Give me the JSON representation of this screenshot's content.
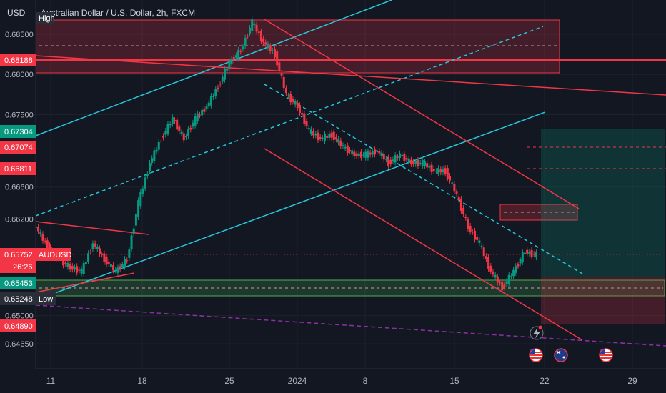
{
  "header": {
    "currency": "USD",
    "title": "Australian Dollar / U.S. Dollar, 2h, FXCM"
  },
  "chart_data": {
    "type": "candlestick",
    "title": "Australian Dollar / U.S. Dollar, 2h, FXCM",
    "symbol": "AUDUSD",
    "y_ticks": [
      0.685,
      0.68,
      0.675,
      0.666,
      0.662,
      0.65,
      0.6465
    ],
    "x_ticks": [
      "11",
      "18",
      "25",
      "2024",
      "8",
      "15",
      "22",
      "29"
    ],
    "ylim": [
      0.644,
      0.6885
    ],
    "grid": true,
    "price_tags": [
      {
        "value": "0.68188",
        "label": "",
        "color": "#f23645"
      },
      {
        "value": "0.67304",
        "label": "",
        "color": "#089981"
      },
      {
        "value": "0.67074",
        "label": "",
        "color": "#f23645"
      },
      {
        "value": "0.66811",
        "label": "",
        "color": "#f23645"
      },
      {
        "value": "0.65752",
        "label": "AUDUSD",
        "color": "#f23645"
      },
      {
        "value": "26:26",
        "label": "",
        "color": "#f23645"
      },
      {
        "value": "0.65453",
        "label": "",
        "color": "#089981"
      },
      {
        "value": "0.65248",
        "label": "Low",
        "color": "#2a2e39"
      },
      {
        "value": "0.64890",
        "label": "",
        "color": "#f23645"
      }
    ],
    "annotations": [
      "High",
      "Low"
    ],
    "series": [
      {
        "name": "AUDUSD",
        "points": [
          [
            0,
            0.661
          ],
          [
            1,
            0.6585
          ],
          [
            2,
            0.657
          ],
          [
            3,
            0.656
          ],
          [
            4,
            0.6555
          ],
          [
            5,
            0.659
          ],
          [
            6,
            0.657
          ],
          [
            7,
            0.6555
          ],
          [
            8,
            0.657
          ],
          [
            9,
            0.664
          ],
          [
            10,
            0.669
          ],
          [
            11,
            0.672
          ],
          [
            12,
            0.6745
          ],
          [
            13,
            0.672
          ],
          [
            14,
            0.6745
          ],
          [
            15,
            0.676
          ],
          [
            16,
            0.6785
          ],
          [
            17,
            0.6815
          ],
          [
            18,
            0.683
          ],
          [
            19,
            0.6865
          ],
          [
            20,
            0.684
          ],
          [
            21,
            0.6825
          ],
          [
            22,
            0.6775
          ],
          [
            23,
            0.676
          ],
          [
            24,
            0.673
          ],
          [
            25,
            0.672
          ],
          [
            26,
            0.6725
          ],
          [
            27,
            0.671
          ],
          [
            28,
            0.67
          ],
          [
            29,
            0.67
          ],
          [
            30,
            0.6705
          ],
          [
            31,
            0.669
          ],
          [
            32,
            0.67
          ],
          [
            33,
            0.669
          ],
          [
            34,
            0.669
          ],
          [
            35,
            0.668
          ],
          [
            36,
            0.668
          ],
          [
            37,
            0.665
          ],
          [
            38,
            0.661
          ],
          [
            39,
            0.659
          ],
          [
            40,
            0.6555
          ],
          [
            41,
            0.6535
          ],
          [
            42,
            0.6555
          ],
          [
            43,
            0.658
          ],
          [
            44,
            0.6575
          ]
        ]
      }
    ]
  }
}
